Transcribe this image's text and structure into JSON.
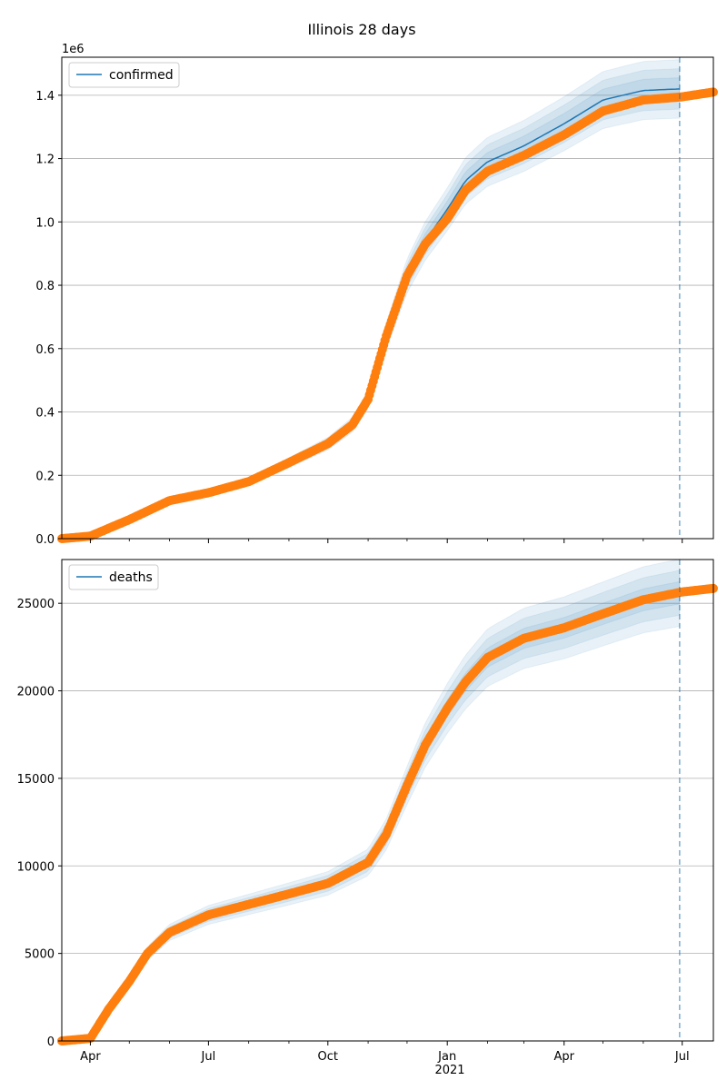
{
  "figure": {
    "title": "Illinois 28 days",
    "x_tick_labels": [
      "Apr",
      "Jul",
      "Oct",
      "Jan",
      "Apr",
      "Jul"
    ],
    "x_year_label": "2021"
  },
  "colors": {
    "line": "#1f77b4",
    "band": "#1f77b4",
    "observed": "#ff7f0e",
    "grid": "#b0b0b0",
    "vline": "#1f77b4"
  },
  "chart_data": [
    {
      "type": "line",
      "series": [
        {
          "name": "confirmed",
          "role": "forecast median line with shaded uncertainty bands",
          "x": [
            "2020-03-10",
            "2020-04-01",
            "2020-05-01",
            "2020-06-01",
            "2020-07-01",
            "2020-08-01",
            "2020-09-01",
            "2020-10-01",
            "2020-10-20",
            "2020-11-01",
            "2020-11-15",
            "2020-12-01",
            "2020-12-15",
            "2021-01-01",
            "2021-01-15",
            "2021-02-01",
            "2021-03-01",
            "2021-04-01",
            "2021-05-01",
            "2021-06-01",
            "2021-06-29"
          ],
          "y": [
            0,
            8000,
            60000,
            120000,
            145000,
            180000,
            240000,
            300000,
            360000,
            440000,
            640000,
            830000,
            940000,
            1040000,
            1130000,
            1190000,
            1240000,
            1310000,
            1385000,
            1415000,
            1420000
          ]
        },
        {
          "role": "observed data points",
          "x": [
            "2020-03-10",
            "2020-04-01",
            "2020-05-01",
            "2020-06-01",
            "2020-07-01",
            "2020-08-01",
            "2020-09-01",
            "2020-10-01",
            "2020-10-20",
            "2020-11-01",
            "2020-11-15",
            "2020-12-01",
            "2020-12-15",
            "2021-01-01",
            "2021-01-15",
            "2021-02-01",
            "2021-03-01",
            "2021-04-01",
            "2021-05-01",
            "2021-06-01",
            "2021-07-01",
            "2021-07-25"
          ],
          "y": [
            0,
            8000,
            60000,
            120000,
            145000,
            180000,
            240000,
            300000,
            360000,
            440000,
            640000,
            830000,
            930000,
            1010000,
            1100000,
            1160000,
            1210000,
            1275000,
            1350000,
            1385000,
            1395000,
            1410000
          ]
        }
      ],
      "legend": [
        "confirmed"
      ],
      "legend_placement": "upper left",
      "y_tick_labels": [
        "0.0",
        "0.2",
        "0.4",
        "0.6",
        "0.8",
        "1.0",
        "1.2",
        "1.4"
      ],
      "y_tick_values": [
        0,
        200000,
        400000,
        600000,
        800000,
        1000000,
        1200000,
        1400000
      ],
      "y_offset_label": "1e6",
      "ylim": [
        0,
        1520000
      ],
      "xlim": [
        "2020-03-10",
        "2021-07-25"
      ],
      "forecast_start": "2021-06-29",
      "grid": "horizontal"
    },
    {
      "type": "line",
      "series": [
        {
          "name": "deaths",
          "role": "forecast median line with shaded uncertainty bands",
          "x": [
            "2020-03-10",
            "2020-04-01",
            "2020-04-15",
            "2020-05-01",
            "2020-05-15",
            "2020-06-01",
            "2020-07-01",
            "2020-08-01",
            "2020-09-01",
            "2020-10-01",
            "2020-11-01",
            "2020-11-15",
            "2020-12-01",
            "2020-12-15",
            "2021-01-01",
            "2021-01-15",
            "2021-02-01",
            "2021-03-01",
            "2021-04-01",
            "2021-05-01",
            "2021-06-01",
            "2021-06-29"
          ],
          "y": [
            0,
            150,
            1800,
            3400,
            5000,
            6200,
            7200,
            7800,
            8400,
            9000,
            10200,
            11800,
            14600,
            16900,
            19000,
            20500,
            21900,
            23000,
            23600,
            24400,
            25200,
            25600
          ]
        },
        {
          "role": "observed data points",
          "x": [
            "2020-03-10",
            "2020-04-01",
            "2020-04-15",
            "2020-05-01",
            "2020-05-15",
            "2020-06-01",
            "2020-07-01",
            "2020-08-01",
            "2020-09-01",
            "2020-10-01",
            "2020-11-01",
            "2020-11-15",
            "2020-12-01",
            "2020-12-15",
            "2021-01-01",
            "2021-01-15",
            "2021-02-01",
            "2021-03-01",
            "2021-04-01",
            "2021-05-01",
            "2021-06-01",
            "2021-07-01",
            "2021-07-25"
          ],
          "y": [
            0,
            150,
            1800,
            3400,
            5000,
            6200,
            7200,
            7800,
            8400,
            9000,
            10200,
            11800,
            14600,
            16900,
            19000,
            20500,
            21900,
            23000,
            23600,
            24400,
            25200,
            25650,
            25850
          ]
        }
      ],
      "legend": [
        "deaths"
      ],
      "legend_placement": "upper left",
      "y_tick_labels": [
        "0",
        "5000",
        "10000",
        "15000",
        "20000",
        "25000"
      ],
      "y_tick_values": [
        0,
        5000,
        10000,
        15000,
        20000,
        25000
      ],
      "ylim": [
        0,
        27500
      ],
      "xlim": [
        "2020-03-10",
        "2021-07-25"
      ],
      "forecast_start": "2021-06-29",
      "grid": "horizontal"
    }
  ]
}
